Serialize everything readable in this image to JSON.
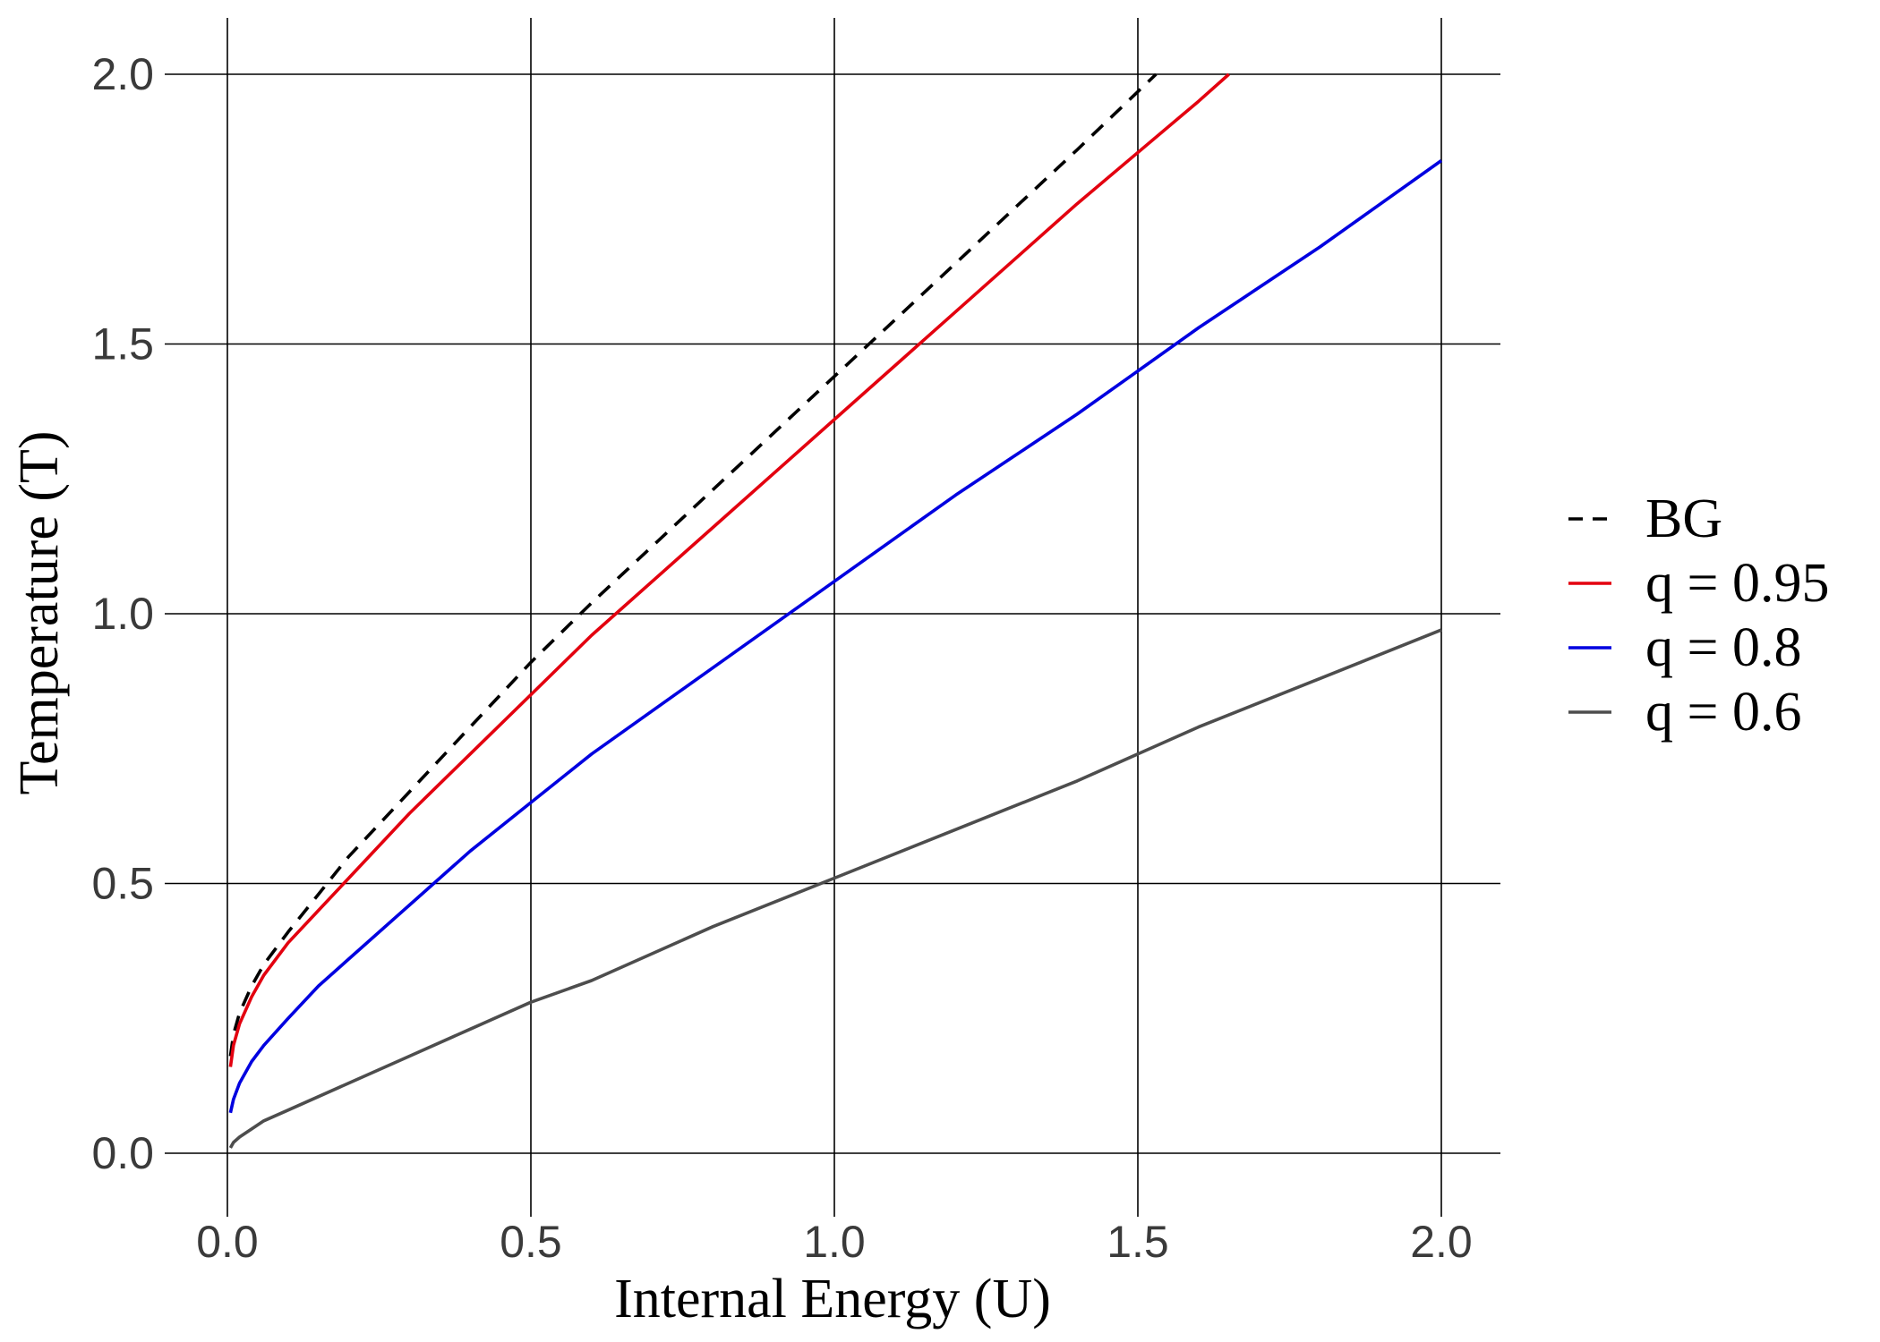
{
  "chart_data": {
    "type": "line",
    "title": "",
    "xlabel": "Internal Energy (U)",
    "ylabel": "Temperature (T)",
    "xlim": [
      0,
      2
    ],
    "ylim": [
      0,
      2
    ],
    "grid": true,
    "legend_position": "right",
    "x_ticks": [
      {
        "value": 0.0,
        "label": "0.0"
      },
      {
        "value": 0.5,
        "label": "0.5"
      },
      {
        "value": 1.0,
        "label": "1.0"
      },
      {
        "value": 1.5,
        "label": "1.5"
      },
      {
        "value": 2.0,
        "label": "2.0"
      }
    ],
    "y_ticks": [
      {
        "value": 0.0,
        "label": "0.0"
      },
      {
        "value": 0.5,
        "label": "0.5"
      },
      {
        "value": 1.0,
        "label": "1.0"
      },
      {
        "value": 1.5,
        "label": "1.5"
      },
      {
        "value": 2.0,
        "label": "2.0"
      }
    ],
    "series": [
      {
        "name": "BG",
        "color": "#000000",
        "dash": "dashed",
        "x": [
          0.005,
          0.01,
          0.02,
          0.04,
          0.06,
          0.1,
          0.15,
          0.2,
          0.3,
          0.4,
          0.5,
          0.6,
          0.8,
          1.0,
          1.2,
          1.4,
          1.53
        ],
        "y": [
          0.18,
          0.22,
          0.26,
          0.31,
          0.35,
          0.41,
          0.48,
          0.55,
          0.67,
          0.79,
          0.91,
          1.02,
          1.23,
          1.44,
          1.65,
          1.86,
          2.0
        ]
      },
      {
        "name": "q = 0.95",
        "color": "#e3000f",
        "dash": "solid",
        "x": [
          0.005,
          0.01,
          0.02,
          0.04,
          0.06,
          0.1,
          0.15,
          0.2,
          0.3,
          0.4,
          0.5,
          0.6,
          0.8,
          1.0,
          1.2,
          1.4,
          1.6,
          1.65
        ],
        "y": [
          0.16,
          0.2,
          0.24,
          0.29,
          0.33,
          0.39,
          0.45,
          0.51,
          0.63,
          0.74,
          0.85,
          0.96,
          1.16,
          1.36,
          1.56,
          1.76,
          1.95,
          2.0
        ]
      },
      {
        "name": "q = 0.8",
        "color": "#0000e0",
        "dash": "solid",
        "x": [
          0.005,
          0.01,
          0.02,
          0.04,
          0.06,
          0.1,
          0.15,
          0.2,
          0.3,
          0.4,
          0.5,
          0.6,
          0.8,
          1.0,
          1.2,
          1.4,
          1.6,
          1.8,
          2.0
        ],
        "y": [
          0.075,
          0.1,
          0.13,
          0.17,
          0.2,
          0.25,
          0.31,
          0.36,
          0.46,
          0.56,
          0.65,
          0.74,
          0.9,
          1.06,
          1.22,
          1.37,
          1.53,
          1.68,
          1.84
        ]
      },
      {
        "name": "q = 0.6",
        "color": "#4d4d4d",
        "dash": "solid",
        "x": [
          0.005,
          0.01,
          0.02,
          0.04,
          0.06,
          0.1,
          0.2,
          0.3,
          0.4,
          0.5,
          0.6,
          0.8,
          1.0,
          1.2,
          1.4,
          1.6,
          1.8,
          2.0
        ],
        "y": [
          0.01,
          0.02,
          0.03,
          0.045,
          0.06,
          0.08,
          0.13,
          0.18,
          0.23,
          0.28,
          0.32,
          0.42,
          0.51,
          0.6,
          0.69,
          0.79,
          0.88,
          0.97
        ]
      }
    ]
  }
}
